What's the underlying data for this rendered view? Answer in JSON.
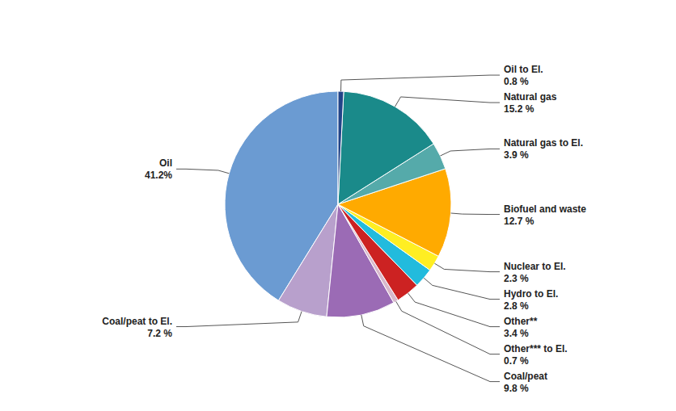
{
  "chart_data": {
    "type": "pie",
    "categories": [
      "Oil",
      "Coal/peat to El.",
      "Coal/peat",
      "Other*** to El.",
      "Other**",
      "Hydro to El.",
      "Nuclear to El.",
      "Biofuel and waste",
      "Natural gas to El.",
      "Natural gas",
      "Oil to El."
    ],
    "values": [
      41.2,
      7.2,
      9.8,
      0.7,
      3.4,
      2.8,
      2.3,
      12.7,
      3.9,
      15.2,
      0.8
    ],
    "value_labels": [
      "41.2%",
      "7.2 %",
      "9.8 %",
      "0.7 %",
      "3.4 %",
      "2.8 %",
      "2.3 %",
      "12.7 %",
      "3.9 %",
      "15.2 %",
      "0.8 %"
    ],
    "colors": [
      "#6B9BD2",
      "#B8A0CC",
      "#9B6BB5",
      "#D8B8CC",
      "#CC2222",
      "#22BBDD",
      "#FFEE22",
      "#FFAA00",
      "#55AAAA",
      "#1A8A8A",
      "#224488"
    ],
    "data_labels": true
  }
}
